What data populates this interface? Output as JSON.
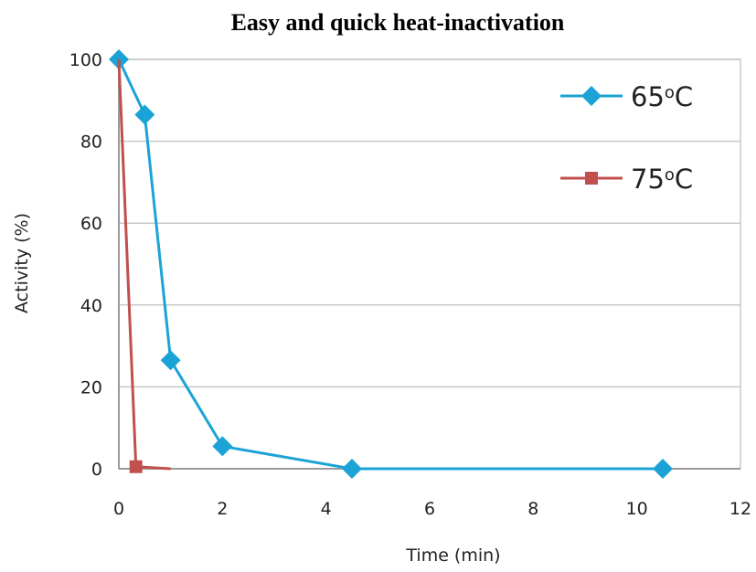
{
  "chart_data": {
    "type": "line",
    "title": "Easy and quick heat-inactivation",
    "xlabel": "Time (min)",
    "ylabel": "Activity (%)",
    "xlim": [
      0,
      12
    ],
    "ylim": [
      0,
      100
    ],
    "x_ticks": [
      0,
      2,
      4,
      6,
      8,
      10,
      12
    ],
    "y_ticks": [
      0,
      20,
      40,
      60,
      80,
      100
    ],
    "grid": "horizontal",
    "legend_position": "top-right",
    "series": [
      {
        "name": "65oC",
        "label_base": "65",
        "label_sup": "o",
        "label_unit": "C",
        "color": "#1BA3D6",
        "marker": "diamond",
        "points": [
          [
            0,
            100
          ],
          [
            0.5,
            86.5
          ],
          [
            1,
            26.5
          ],
          [
            2,
            5.5
          ],
          [
            4.5,
            0
          ],
          [
            10.5,
            0
          ]
        ]
      },
      {
        "name": "75oC",
        "label_base": "75",
        "label_sup": "o",
        "label_unit": "C",
        "color": "#C0504D",
        "marker": "square",
        "points": [
          [
            0,
            100
          ],
          [
            0.33,
            0.5
          ],
          [
            1,
            0
          ]
        ],
        "marker_indices": [
          1
        ]
      }
    ]
  }
}
